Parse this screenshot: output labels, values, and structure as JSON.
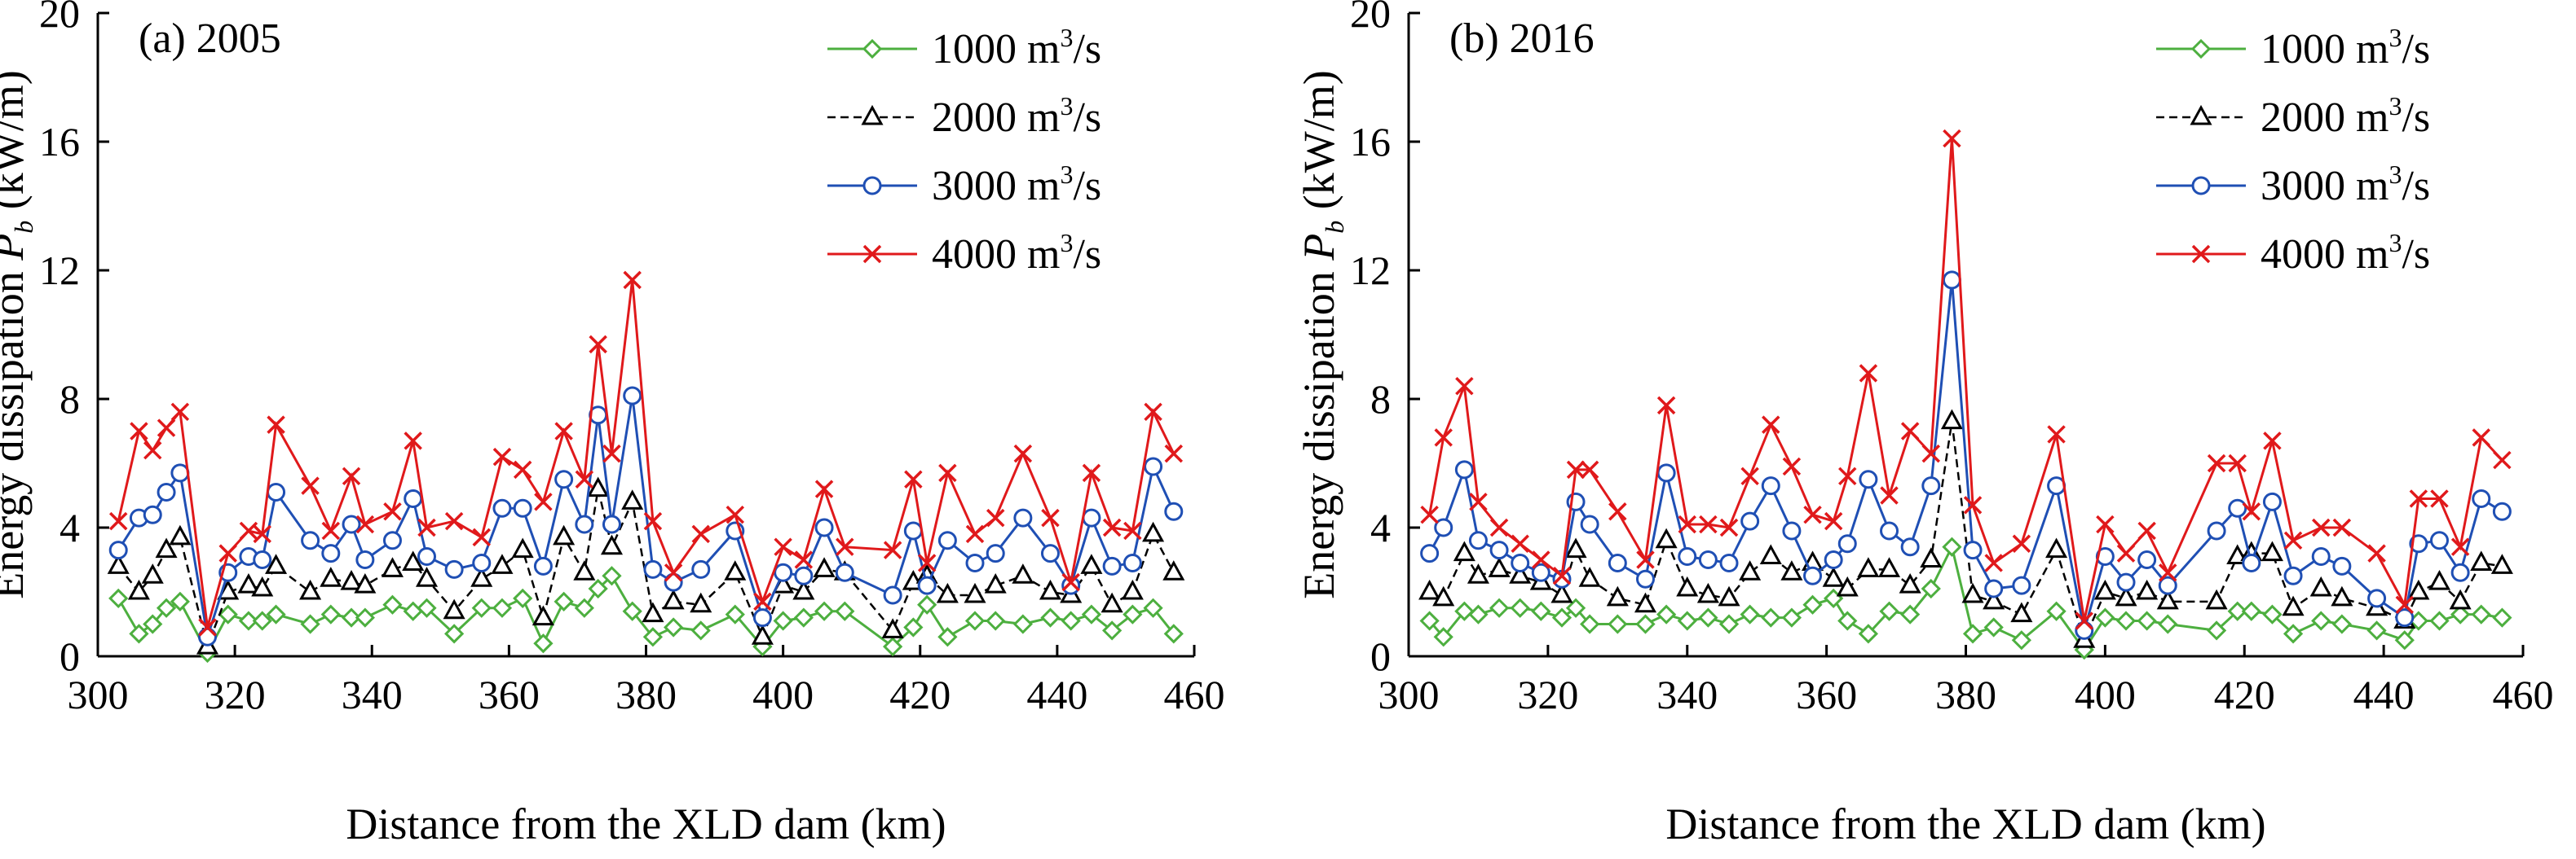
{
  "figure": {
    "xlabel": "Distance from the XLD dam (km)",
    "ylabel_main": "Energy dissipation ",
    "ylabel_var": "P",
    "ylabel_sub": "b",
    "ylabel_unit": " (kW/m)"
  },
  "chart_data": [
    {
      "type": "line",
      "title": "(a) 2005",
      "xlabel": "Distance from the XLD dam (km)",
      "ylabel": "Energy dissipation Pb (kW/m)",
      "xlim": [
        300,
        460
      ],
      "ylim": [
        0,
        20
      ],
      "xticks": [
        "300",
        "320",
        "340",
        "360",
        "380",
        "400",
        "420",
        "440",
        "460"
      ],
      "yticks": [
        "0",
        "4",
        "8",
        "12",
        "16",
        "20"
      ],
      "grid": false,
      "legend_position": "top-right",
      "x": [
        303,
        306,
        308,
        310,
        312,
        316,
        319,
        322,
        324,
        326,
        331,
        334,
        337,
        339,
        343,
        346,
        348,
        352,
        356,
        359,
        362,
        365,
        368,
        371,
        373,
        375,
        378,
        381,
        384,
        388,
        393,
        397,
        400,
        403,
        406,
        409,
        416,
        419,
        421,
        424,
        428,
        431,
        435,
        439,
        442,
        445,
        448,
        451,
        454,
        457
      ],
      "series": [
        {
          "name": "1000 m³/s",
          "color": "#4daf3f",
          "marker": "diamond",
          "dash": "solid",
          "values": [
            1.8,
            0.7,
            1.0,
            1.5,
            1.7,
            0.1,
            1.3,
            1.1,
            1.1,
            1.3,
            1.0,
            1.3,
            1.2,
            1.2,
            1.6,
            1.4,
            1.5,
            0.7,
            1.5,
            1.5,
            1.8,
            0.4,
            1.7,
            1.5,
            2.1,
            2.5,
            1.4,
            0.6,
            0.9,
            0.8,
            1.3,
            0.3,
            1.1,
            1.2,
            1.4,
            1.4,
            0.3,
            0.9,
            1.6,
            0.6,
            1.1,
            1.1,
            1.0,
            1.2,
            1.1,
            1.3,
            0.8,
            1.3,
            1.5,
            0.7
          ]
        },
        {
          "name": "2000 m³/s",
          "color": "#000000",
          "marker": "triangle",
          "dash": "dashed",
          "values": [
            2.8,
            2.0,
            2.5,
            3.3,
            3.7,
            0.3,
            2.0,
            2.2,
            2.1,
            2.8,
            2.0,
            2.4,
            2.3,
            2.2,
            2.7,
            2.9,
            2.4,
            1.4,
            2.4,
            2.8,
            3.3,
            1.2,
            3.7,
            2.6,
            5.2,
            3.4,
            4.8,
            1.3,
            1.7,
            1.6,
            2.6,
            0.6,
            2.2,
            2.0,
            2.7,
            2.6,
            0.8,
            2.3,
            2.5,
            1.9,
            1.9,
            2.2,
            2.5,
            2.0,
            1.9,
            2.8,
            1.6,
            2.0,
            3.8,
            2.6
          ]
        },
        {
          "name": "3000 m³/s",
          "color": "#1f4fb4",
          "marker": "circle",
          "dash": "solid",
          "values": [
            3.3,
            4.3,
            4.4,
            5.1,
            5.7,
            0.6,
            2.6,
            3.1,
            3.0,
            5.1,
            3.6,
            3.2,
            4.1,
            3.0,
            3.6,
            4.9,
            3.1,
            2.7,
            2.9,
            4.6,
            4.6,
            2.8,
            5.5,
            4.1,
            7.5,
            4.1,
            8.1,
            2.7,
            2.3,
            2.7,
            3.9,
            1.2,
            2.6,
            2.5,
            4.0,
            2.6,
            1.9,
            3.9,
            2.2,
            3.6,
            2.9,
            3.2,
            4.3,
            3.2,
            2.2,
            4.3,
            2.8,
            2.9,
            5.9,
            4.5
          ]
        },
        {
          "name": "4000 m³/s",
          "color": "#e0191b",
          "marker": "x",
          "dash": "solid",
          "values": [
            4.2,
            7.0,
            6.4,
            7.1,
            7.6,
            0.9,
            3.2,
            3.9,
            3.8,
            7.2,
            5.3,
            3.9,
            5.6,
            4.1,
            4.5,
            6.7,
            4.0,
            4.2,
            3.7,
            6.2,
            5.8,
            4.8,
            7.0,
            5.5,
            9.7,
            6.3,
            11.7,
            4.2,
            2.6,
            3.8,
            4.4,
            1.7,
            3.4,
            3.0,
            5.2,
            3.4,
            3.3,
            5.5,
            2.9,
            5.7,
            3.8,
            4.3,
            6.3,
            4.3,
            2.3,
            5.7,
            4.0,
            3.9,
            7.6,
            6.3
          ]
        }
      ]
    },
    {
      "type": "line",
      "title": "(b) 2016",
      "xlabel": "Distance from the XLD dam (km)",
      "ylabel": "Energy dissipation Pb (kW/m)",
      "xlim": [
        300,
        460
      ],
      "ylim": [
        0,
        20
      ],
      "xticks": [
        "300",
        "320",
        "340",
        "360",
        "380",
        "400",
        "420",
        "440",
        "460"
      ],
      "yticks": [
        "0",
        "4",
        "8",
        "12",
        "16",
        "20"
      ],
      "grid": false,
      "legend_position": "top-right",
      "x": [
        303,
        305,
        308,
        310,
        313,
        316,
        319,
        322,
        324,
        326,
        330,
        334,
        337,
        340,
        343,
        346,
        349,
        352,
        355,
        358,
        361,
        363,
        366,
        369,
        372,
        375,
        378,
        381,
        384,
        388,
        393,
        397,
        400,
        403,
        406,
        409,
        416,
        419,
        421,
        424,
        427,
        431,
        434,
        439,
        443,
        445,
        448,
        451,
        454,
        457
      ],
      "series": [
        {
          "name": "1000 m³/s",
          "color": "#4daf3f",
          "marker": "diamond",
          "dash": "solid",
          "values": [
            1.1,
            0.6,
            1.4,
            1.3,
            1.5,
            1.5,
            1.4,
            1.2,
            1.5,
            1.0,
            1.0,
            1.0,
            1.3,
            1.1,
            1.2,
            1.0,
            1.3,
            1.2,
            1.2,
            1.6,
            1.8,
            1.1,
            0.7,
            1.4,
            1.3,
            2.1,
            3.4,
            0.7,
            0.9,
            0.5,
            1.4,
            0.2,
            1.2,
            1.1,
            1.1,
            1.0,
            0.8,
            1.4,
            1.4,
            1.3,
            0.7,
            1.1,
            1.0,
            0.8,
            0.5,
            1.1,
            1.1,
            1.3,
            1.3,
            1.2
          ]
        },
        {
          "name": "2000 m³/s",
          "color": "#000000",
          "marker": "triangle",
          "dash": "dashed",
          "values": [
            2.0,
            1.8,
            3.2,
            2.5,
            2.7,
            2.5,
            2.3,
            1.9,
            3.3,
            2.4,
            1.8,
            1.6,
            3.6,
            2.1,
            1.9,
            1.8,
            2.6,
            3.1,
            2.6,
            2.9,
            2.4,
            2.1,
            2.7,
            2.7,
            2.2,
            3.0,
            7.3,
            1.9,
            1.7,
            1.3,
            3.3,
            0.5,
            2.0,
            1.8,
            2.0,
            1.7,
            1.7,
            3.1,
            3.2,
            3.2,
            1.5,
            2.1,
            1.8,
            1.5,
            1.1,
            2.0,
            2.3,
            1.7,
            2.9,
            2.8
          ]
        },
        {
          "name": "3000 m³/s",
          "color": "#1f4fb4",
          "marker": "circle",
          "dash": "solid",
          "values": [
            3.2,
            4.0,
            5.8,
            3.6,
            3.3,
            2.9,
            2.6,
            2.4,
            4.8,
            4.1,
            2.9,
            2.4,
            5.7,
            3.1,
            3.0,
            2.9,
            4.2,
            5.3,
            3.9,
            2.5,
            3.0,
            3.5,
            5.5,
            3.9,
            3.4,
            5.3,
            11.7,
            3.3,
            2.1,
            2.2,
            5.3,
            0.8,
            3.1,
            2.3,
            3.0,
            2.2,
            3.9,
            4.6,
            2.9,
            4.8,
            2.5,
            3.1,
            2.8,
            1.8,
            1.2,
            3.5,
            3.6,
            2.6,
            4.9,
            4.5
          ]
        },
        {
          "name": "4000 m³/s",
          "color": "#e0191b",
          "marker": "x",
          "dash": "solid",
          "values": [
            4.4,
            6.8,
            8.4,
            4.8,
            4.0,
            3.5,
            3.0,
            2.5,
            5.8,
            5.8,
            4.5,
            3.0,
            7.8,
            4.1,
            4.1,
            4.0,
            5.6,
            7.2,
            5.9,
            4.4,
            4.2,
            5.6,
            8.8,
            5.0,
            7.0,
            6.3,
            16.1,
            4.7,
            2.9,
            3.5,
            6.9,
            1.1,
            4.1,
            3.2,
            3.9,
            2.6,
            6.0,
            6.0,
            4.5,
            6.7,
            3.6,
            4.0,
            4.0,
            3.2,
            1.6,
            4.9,
            4.9,
            3.4,
            6.8,
            6.1
          ]
        }
      ]
    }
  ]
}
